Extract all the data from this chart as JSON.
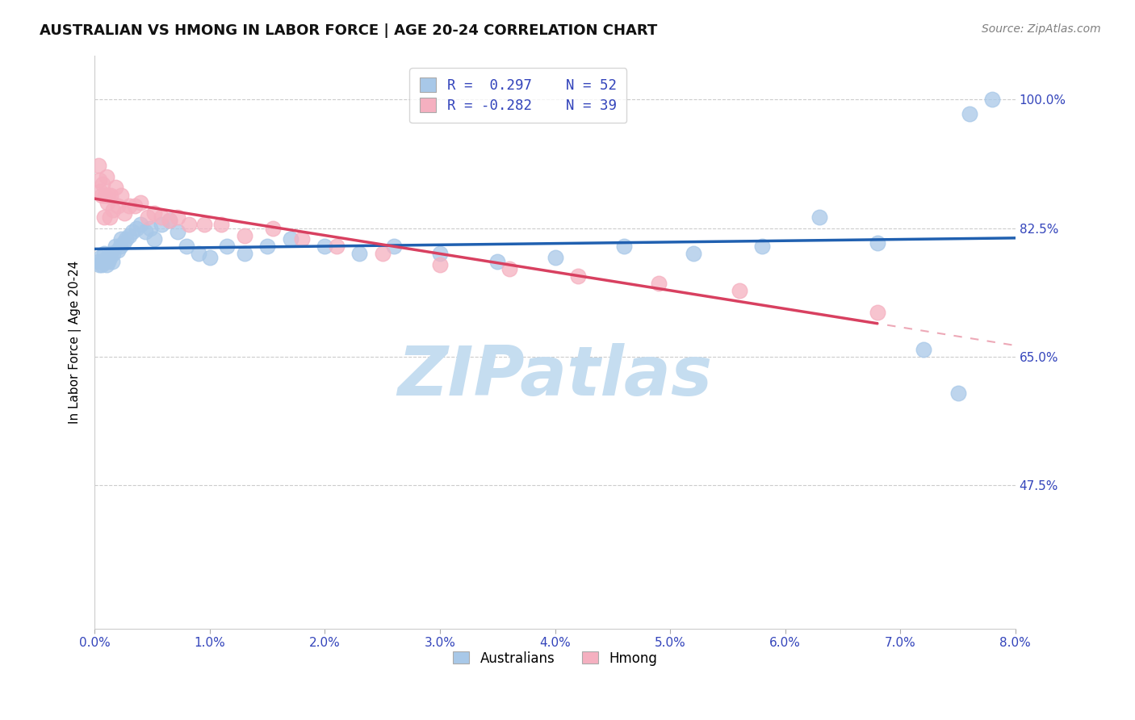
{
  "title": "AUSTRALIAN VS HMONG IN LABOR FORCE | AGE 20-24 CORRELATION CHART",
  "source": "Source: ZipAtlas.com",
  "ylabel": "In Labor Force | Age 20-24",
  "ytick_labels": [
    "100.0%",
    "82.5%",
    "65.0%",
    "47.5%"
  ],
  "ytick_values": [
    1.0,
    0.825,
    0.65,
    0.475
  ],
  "legend_blue_r": "R =  0.297",
  "legend_blue_n": "N = 52",
  "legend_pink_r": "R = -0.282",
  "legend_pink_n": "N = 39",
  "blue_scatter_color": "#a8c8e8",
  "pink_scatter_color": "#f5b0c0",
  "blue_line_color": "#2060b0",
  "pink_line_color": "#d84060",
  "grid_color": "#cccccc",
  "xmin": 0.0,
  "xmax": 0.08,
  "ymin": 0.28,
  "ymax": 1.06,
  "australians_x": [
    0.0003,
    0.0004,
    0.0005,
    0.0006,
    0.0007,
    0.0008,
    0.0009,
    0.001,
    0.0011,
    0.0012,
    0.0013,
    0.0014,
    0.0015,
    0.0016,
    0.0018,
    0.002,
    0.0022,
    0.0023,
    0.0025,
    0.0027,
    0.003,
    0.0033,
    0.0036,
    0.004,
    0.0044,
    0.0048,
    0.0052,
    0.0058,
    0.0065,
    0.0072,
    0.008,
    0.009,
    0.01,
    0.0115,
    0.013,
    0.015,
    0.017,
    0.02,
    0.023,
    0.026,
    0.03,
    0.035,
    0.04,
    0.046,
    0.052,
    0.058,
    0.063,
    0.068,
    0.072,
    0.075,
    0.076,
    0.078
  ],
  "australians_y": [
    0.78,
    0.775,
    0.785,
    0.775,
    0.78,
    0.79,
    0.78,
    0.775,
    0.785,
    0.78,
    0.785,
    0.79,
    0.78,
    0.79,
    0.8,
    0.795,
    0.8,
    0.81,
    0.805,
    0.81,
    0.815,
    0.82,
    0.825,
    0.83,
    0.82,
    0.825,
    0.81,
    0.83,
    0.835,
    0.82,
    0.8,
    0.79,
    0.785,
    0.8,
    0.79,
    0.8,
    0.81,
    0.8,
    0.79,
    0.8,
    0.79,
    0.78,
    0.785,
    0.8,
    0.79,
    0.8,
    0.84,
    0.805,
    0.66,
    0.6,
    0.98,
    1.0
  ],
  "hmong_x": [
    0.0003,
    0.0004,
    0.0005,
    0.0006,
    0.0007,
    0.0008,
    0.0009,
    0.001,
    0.0011,
    0.0012,
    0.0013,
    0.0014,
    0.0016,
    0.0018,
    0.002,
    0.0023,
    0.0026,
    0.003,
    0.0035,
    0.004,
    0.0046,
    0.0052,
    0.0058,
    0.0065,
    0.0072,
    0.0082,
    0.0095,
    0.011,
    0.013,
    0.0155,
    0.018,
    0.021,
    0.025,
    0.03,
    0.036,
    0.042,
    0.049,
    0.056,
    0.068
  ],
  "hmong_y": [
    0.91,
    0.89,
    0.875,
    0.87,
    0.885,
    0.84,
    0.87,
    0.895,
    0.86,
    0.87,
    0.84,
    0.87,
    0.85,
    0.88,
    0.855,
    0.87,
    0.845,
    0.855,
    0.855,
    0.86,
    0.84,
    0.845,
    0.84,
    0.835,
    0.84,
    0.83,
    0.83,
    0.83,
    0.815,
    0.825,
    0.81,
    0.8,
    0.79,
    0.775,
    0.77,
    0.76,
    0.75,
    0.74,
    0.71
  ]
}
